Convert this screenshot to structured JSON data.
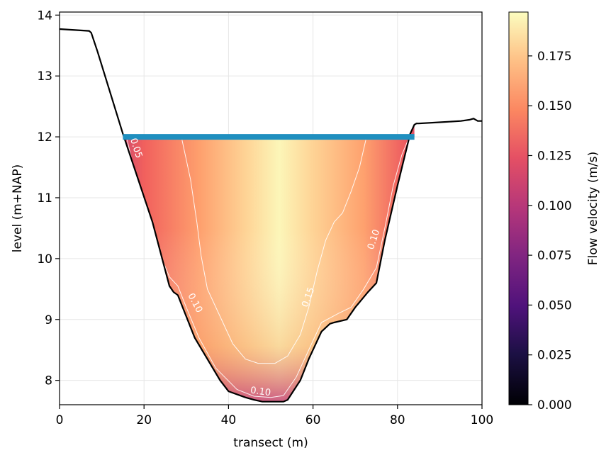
{
  "chart_data": {
    "type": "heatmap",
    "title": "",
    "xlabel": "transect (m)",
    "ylabel": "level (m+NAP)",
    "xlim": [
      0,
      100
    ],
    "ylim": [
      7.6,
      14.05
    ],
    "xticks": [
      "0",
      "20",
      "40",
      "60",
      "80",
      "100"
    ],
    "yticks": [
      "8",
      "9",
      "10",
      "11",
      "12",
      "13",
      "14"
    ],
    "grid": true,
    "colormap": "magma",
    "colorbar": {
      "label": "Flow velocity (m/s)",
      "range": [
        0.0,
        0.197
      ],
      "ticks": [
        "0.000",
        "0.025",
        "0.050",
        "0.075",
        "0.100",
        "0.125",
        "0.150",
        "0.175"
      ]
    },
    "water_level": {
      "y": 12.0,
      "x_range": [
        15,
        84
      ],
      "color": "#1f8fbf"
    },
    "bed_profile": {
      "x": [
        0,
        7,
        7.5,
        9,
        15,
        22,
        26,
        27,
        28,
        30,
        32,
        38,
        40,
        44,
        46,
        48,
        53,
        54,
        57,
        59,
        62,
        64,
        65,
        68,
        70,
        73,
        75,
        77,
        80,
        83,
        84,
        84.5,
        85,
        90,
        95,
        97,
        98,
        99,
        100
      ],
      "y": [
        13.77,
        13.74,
        13.71,
        13.4,
        12.05,
        10.6,
        9.55,
        9.45,
        9.4,
        9.05,
        8.7,
        8.0,
        7.82,
        7.72,
        7.68,
        7.65,
        7.65,
        7.68,
        8.0,
        8.35,
        8.8,
        8.93,
        8.95,
        9.0,
        9.2,
        9.45,
        9.6,
        10.3,
        11.2,
        12.05,
        12.2,
        12.22,
        12.22,
        12.24,
        12.26,
        12.28,
        12.3,
        12.26,
        12.26
      ]
    },
    "contours": [
      {
        "level": "0.05",
        "label_at": [
          17.5,
          11.8
        ]
      },
      {
        "level": "0.10",
        "label_at": [
          31.5,
          9.25
        ]
      },
      {
        "level": "0.10",
        "label_at": [
          47.5,
          7.77
        ]
      },
      {
        "level": "0.10",
        "label_at": [
          75,
          10.3
        ]
      },
      {
        "level": "0.15",
        "label_at": [
          59.5,
          9.35
        ]
      }
    ]
  }
}
